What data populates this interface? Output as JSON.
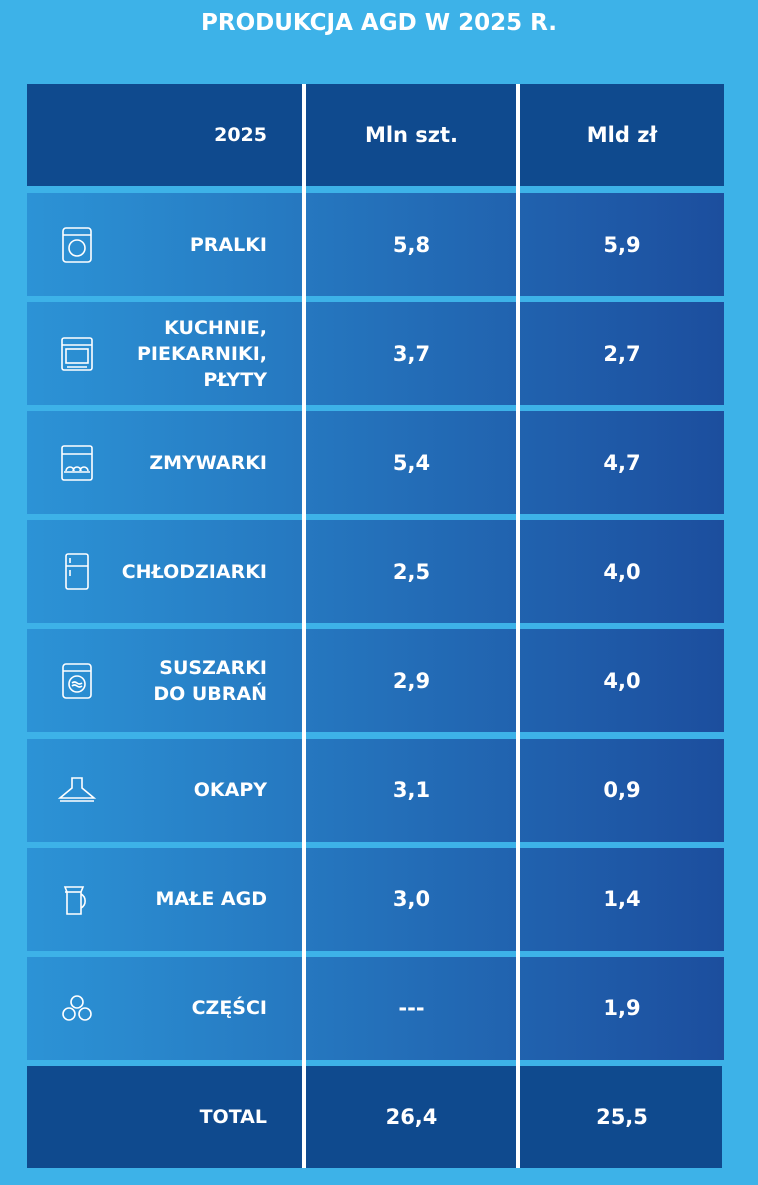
{
  "title": "PRODUKCJA AGD W 2025 R.",
  "table": {
    "header": [
      "2025",
      "Mln szt.",
      "Mld zł"
    ],
    "rows": [
      [
        "PRALKI",
        "5,8",
        "5,9"
      ],
      [
        "KUCHNIE,\nPIEKARNIKI,\nPŁYTY",
        "3,7",
        "2,7"
      ],
      [
        "ZMYWARKI",
        "5,4",
        "4,7"
      ],
      [
        "CHŁODZIARKI",
        "2,5",
        "4,0"
      ],
      [
        "SUSZARKI\nDO UBRAŃ",
        "2,9",
        "4,0"
      ],
      [
        "OKAPY",
        "3,1",
        "0,9"
      ],
      [
        "MAŁE AGD",
        "3,0",
        "1,4"
      ],
      [
        "CZĘŚCI",
        "---",
        "1,9"
      ]
    ],
    "total": [
      "TOTAL",
      "26,4",
      "25,5"
    ]
  }
}
